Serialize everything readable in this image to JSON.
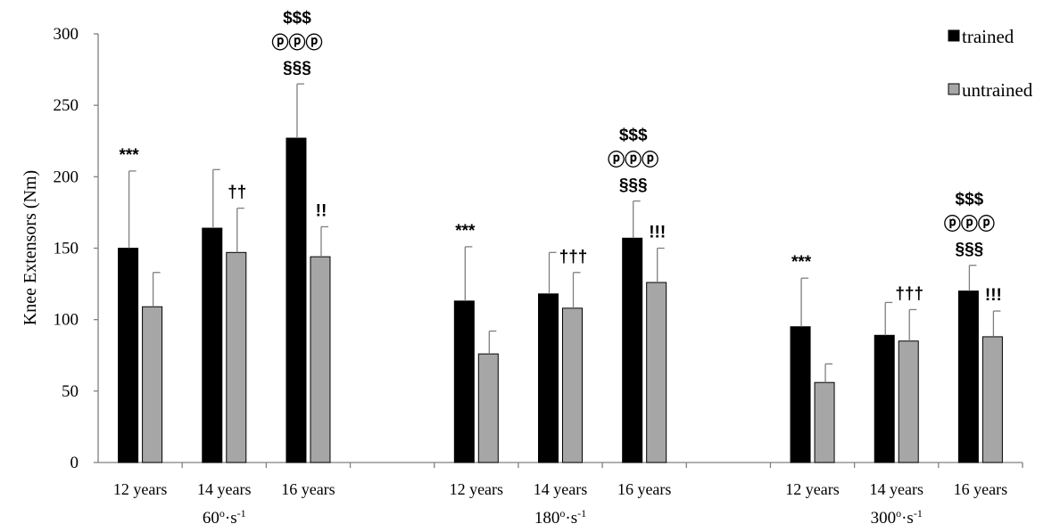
{
  "chart_data": {
    "type": "bar",
    "ylabel": "Knee Extensors (Nm)",
    "ylim": [
      0,
      300
    ],
    "yticks": [
      0,
      50,
      100,
      150,
      200,
      250,
      300
    ],
    "grid": false,
    "legend_position": "top-right",
    "series": [
      {
        "name": "trained",
        "color": "#000000"
      },
      {
        "name": "untrained",
        "color": "#a6a6a6"
      }
    ],
    "groups": [
      {
        "label": "60o·s-1",
        "label_base": "60",
        "label_deg": "o",
        "label_unit": "·s",
        "label_exp": "-1",
        "categories": [
          {
            "label": "12 years",
            "trained": 150,
            "trained_err": 54,
            "untrained": 109,
            "untrained_err": 24,
            "annotations": [
              {
                "series": "trained",
                "lines": [
                  "***"
                ]
              }
            ]
          },
          {
            "label": "14 years",
            "trained": 164,
            "trained_err": 41,
            "untrained": 147,
            "untrained_err": 31,
            "annotations": [
              {
                "series": "untrained",
                "lines": [
                  "††"
                ]
              }
            ]
          },
          {
            "label": "16 years",
            "trained": 227,
            "trained_err": 38,
            "untrained": 144,
            "untrained_err": 21,
            "annotations": [
              {
                "series": "trained",
                "lines": [
                  "$$$",
                  "ⓟⓟⓟ",
                  "§§§"
                ]
              },
              {
                "series": "untrained",
                "lines": [
                  "!!"
                ]
              }
            ]
          }
        ]
      },
      {
        "label": "180o·s-1",
        "label_base": "180",
        "label_deg": "o",
        "label_unit": "·s",
        "label_exp": "-1",
        "categories": [
          {
            "label": "12 years",
            "trained": 113,
            "trained_err": 38,
            "untrained": 76,
            "untrained_err": 16,
            "annotations": [
              {
                "series": "trained",
                "lines": [
                  "***"
                ]
              }
            ]
          },
          {
            "label": "14 years",
            "trained": 118,
            "trained_err": 29,
            "untrained": 108,
            "untrained_err": 25,
            "annotations": [
              {
                "series": "untrained",
                "lines": [
                  "†††"
                ]
              }
            ]
          },
          {
            "label": "16 years",
            "trained": 157,
            "trained_err": 26,
            "untrained": 126,
            "untrained_err": 24,
            "annotations": [
              {
                "series": "trained",
                "lines": [
                  "$$$",
                  "ⓟⓟⓟ",
                  "§§§"
                ]
              },
              {
                "series": "untrained",
                "lines": [
                  "!!!"
                ]
              }
            ]
          }
        ]
      },
      {
        "label": "300o·s-1",
        "label_base": "300",
        "label_deg": "o",
        "label_unit": "·s",
        "label_exp": "-1",
        "categories": [
          {
            "label": "12 years",
            "trained": 95,
            "trained_err": 34,
            "untrained": 56,
            "untrained_err": 13,
            "annotations": [
              {
                "series": "trained",
                "lines": [
                  "***"
                ]
              }
            ]
          },
          {
            "label": "14 years",
            "trained": 89,
            "trained_err": 23,
            "untrained": 85,
            "untrained_err": 22,
            "annotations": [
              {
                "series": "untrained",
                "lines": [
                  "†††"
                ]
              }
            ]
          },
          {
            "label": "16 years",
            "trained": 120,
            "trained_err": 18,
            "untrained": 88,
            "untrained_err": 18,
            "annotations": [
              {
                "series": "trained",
                "lines": [
                  "$$$",
                  "ⓟⓟⓟ",
                  "§§§"
                ]
              },
              {
                "series": "untrained",
                "lines": [
                  "!!!"
                ]
              }
            ]
          }
        ]
      }
    ]
  }
}
